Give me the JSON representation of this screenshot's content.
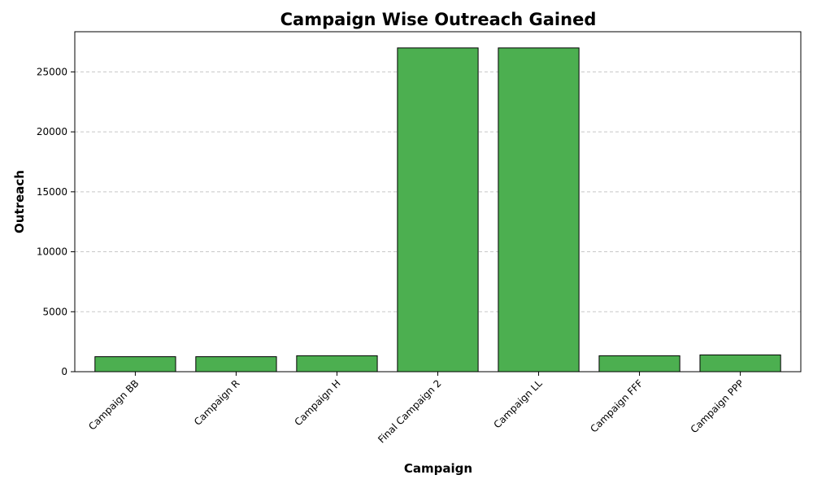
{
  "chart_data": {
    "type": "bar",
    "title": "Campaign Wise Outreach Gained",
    "xlabel": "Campaign",
    "ylabel": "Outreach",
    "categories": [
      "Campaign BB",
      "Campaign R",
      "Campaign H",
      "Final Campaign 2",
      "Campaign LL",
      "Campaign FFF",
      "Campaign PPP"
    ],
    "values": [
      1250,
      1250,
      1330,
      27000,
      27000,
      1330,
      1400
    ],
    "ylim": [
      0,
      28350
    ],
    "yticks": [
      0,
      5000,
      10000,
      15000,
      20000,
      25000
    ],
    "grid": true,
    "grid_axis": "y",
    "legend": "none",
    "colors": {
      "bar_fill": "#4caf50",
      "bar_edge": "#000000",
      "grid": "#c8c8c8"
    }
  }
}
